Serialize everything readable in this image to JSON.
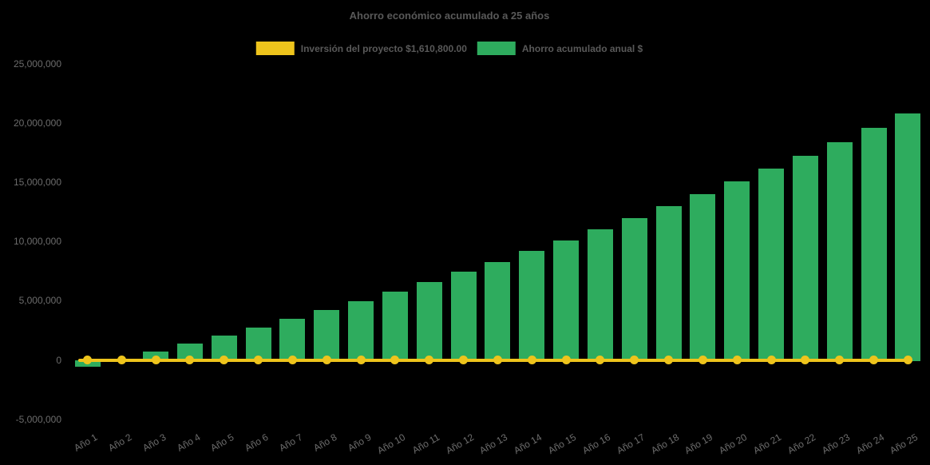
{
  "chart": {
    "background_color": "#000000",
    "title_color": "#595959",
    "axis_label_color": "#6c6c6c"
  },
  "chart_data": {
    "type": "bar",
    "title": "Ahorro económico acumulado a 25 años",
    "categories": [
      "Año 1",
      "Año 2",
      "Año 3",
      "Año 4",
      "Año 5",
      "Año 6",
      "Año 7",
      "Año 8",
      "Año 9",
      "Año 10",
      "Año 11",
      "Año 12",
      "Año 13",
      "Año 14",
      "Año 15",
      "Año 16",
      "Año 17",
      "Año 18",
      "Año 19",
      "Año 20",
      "Año 21",
      "Año 22",
      "Año 23",
      "Año 24",
      "Año 25"
    ],
    "series": [
      {
        "name": "Inversión del proyecto $1,610,800.00",
        "type": "line",
        "color": "#EEC41C",
        "marker": "circle",
        "values": [
          0,
          0,
          0,
          0,
          0,
          0,
          0,
          0,
          0,
          0,
          0,
          0,
          0,
          0,
          0,
          0,
          0,
          0,
          0,
          0,
          0,
          0,
          0,
          0,
          0
        ]
      },
      {
        "name": "Ahorro acumulado anual $",
        "type": "bar",
        "color": "#2EAC5E",
        "values": [
          -600000,
          30000,
          680000,
          1350000,
          2030000,
          2740000,
          3460000,
          4210000,
          4980000,
          5770000,
          6580000,
          7420000,
          8280000,
          9170000,
          10080000,
          11020000,
          11980000,
          12980000,
          14000000,
          15050000,
          16130000,
          17240000,
          18390000,
          19570000,
          20780000
        ]
      }
    ],
    "ylim": [
      -5000000,
      25000000
    ],
    "yticks": [
      25000000,
      20000000,
      15000000,
      10000000,
      5000000,
      0,
      -5000000
    ],
    "ytick_labels": [
      "25,000,000",
      "20,000,000",
      "15,000,000",
      "10,000,000",
      "5,000,000",
      "0",
      "-5,000,000"
    ],
    "grid": false,
    "legend_position": "top-center",
    "x_label_rotation": -30
  }
}
